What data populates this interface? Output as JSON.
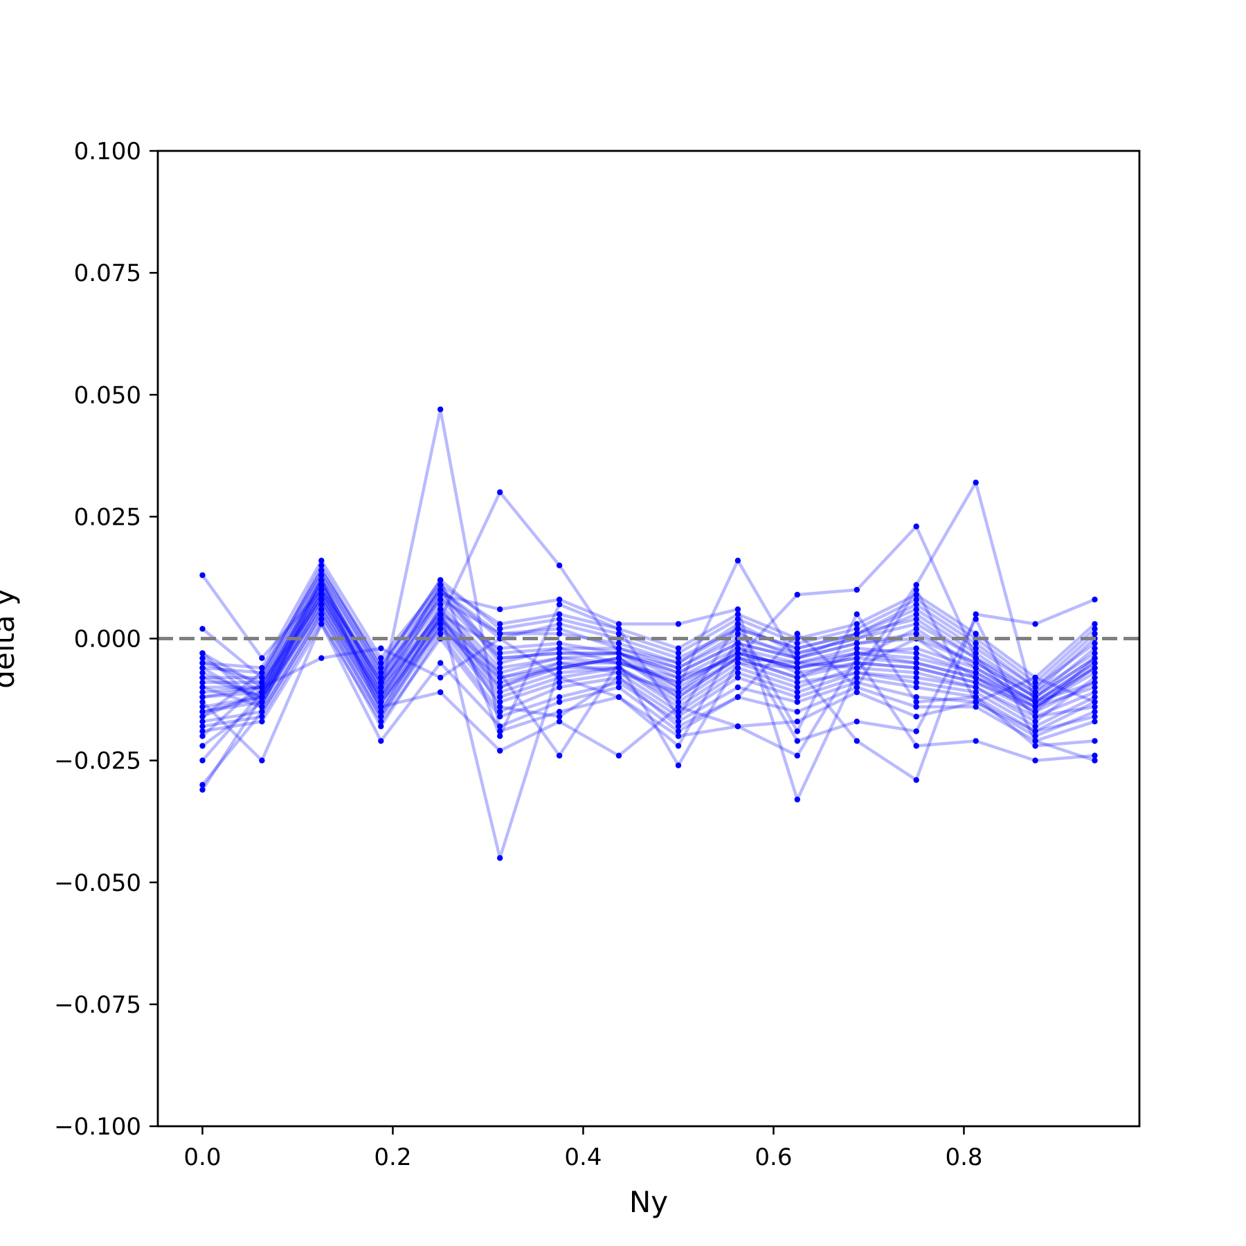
{
  "chart_data": {
    "type": "line",
    "xlabel": "Ny",
    "ylabel": "delta y",
    "xlim": [
      -0.046875,
      0.984375
    ],
    "ylim": [
      -0.1,
      0.1
    ],
    "grid": false,
    "x": [
      0.0,
      0.0625,
      0.125,
      0.1875,
      0.25,
      0.3125,
      0.375,
      0.4375,
      0.5,
      0.5625,
      0.625,
      0.6875,
      0.75,
      0.8125,
      0.875,
      0.9375
    ],
    "x_ticks": [
      0.0,
      0.2,
      0.4,
      0.6,
      0.8
    ],
    "x_tick_labels": [
      "0.0",
      "0.2",
      "0.4",
      "0.6",
      "0.8"
    ],
    "y_ticks": [
      0.1,
      0.075,
      0.05,
      0.025,
      0.0,
      -0.025,
      -0.05,
      -0.075,
      -0.1
    ],
    "y_tick_labels": [
      "0.100",
      "0.075",
      "0.050",
      "0.025",
      "0.000",
      "−0.025",
      "−0.050",
      "−0.075",
      "−0.100"
    ],
    "reference_line": {
      "y": 0.0,
      "style": "dashed",
      "color": "#808080"
    },
    "series_color": "#0000ff",
    "series": [
      {
        "values": [
          0.013,
          -0.004,
          0.01,
          -0.008,
          0.01,
          -0.005,
          -0.002,
          -0.005,
          -0.009,
          -0.003,
          -0.006,
          -0.004,
          0.002,
          -0.006,
          -0.013,
          -0.005
        ]
      },
      {
        "values": [
          -0.031,
          -0.012,
          0.008,
          -0.013,
          0.002,
          -0.008,
          -0.006,
          -0.004,
          -0.012,
          -0.004,
          -0.008,
          -0.003,
          -0.005,
          -0.008,
          -0.015,
          -0.004
        ]
      },
      {
        "values": [
          -0.03,
          -0.015,
          0.005,
          -0.016,
          0.003,
          -0.012,
          -0.008,
          -0.006,
          -0.014,
          -0.006,
          -0.01,
          -0.006,
          -0.007,
          -0.01,
          -0.017,
          -0.008
        ]
      },
      {
        "values": [
          -0.025,
          -0.011,
          0.011,
          -0.009,
          0.005,
          -0.002,
          -0.001,
          -0.003,
          -0.006,
          0.001,
          -0.004,
          0.001,
          0.004,
          -0.004,
          -0.012,
          -0.002
        ]
      },
      {
        "values": [
          -0.022,
          -0.013,
          0.007,
          -0.014,
          0.004,
          -0.01,
          -0.005,
          -0.007,
          -0.011,
          -0.002,
          -0.007,
          -0.005,
          -0.006,
          -0.009,
          -0.014,
          -0.01
        ]
      },
      {
        "values": [
          -0.02,
          -0.009,
          0.013,
          -0.007,
          0.008,
          0.001,
          0.002,
          -0.002,
          -0.005,
          0.003,
          -0.003,
          0.0,
          0.005,
          -0.003,
          -0.011,
          0.0
        ]
      },
      {
        "values": [
          -0.018,
          -0.016,
          0.004,
          -0.018,
          0.001,
          -0.015,
          -0.01,
          -0.008,
          -0.016,
          -0.008,
          -0.012,
          -0.008,
          -0.01,
          -0.012,
          -0.019,
          -0.013
        ]
      },
      {
        "values": [
          -0.016,
          -0.007,
          0.014,
          -0.005,
          0.01,
          0.0,
          0.003,
          0.0,
          -0.004,
          0.002,
          -0.002,
          0.001,
          0.007,
          -0.001,
          -0.01,
          0.001
        ]
      },
      {
        "values": [
          -0.015,
          -0.012,
          0.009,
          -0.011,
          0.006,
          -0.007,
          -0.004,
          -0.005,
          -0.008,
          -0.004,
          -0.005,
          -0.002,
          -0.003,
          -0.007,
          -0.013,
          -0.006
        ]
      },
      {
        "values": [
          -0.012,
          -0.01,
          0.012,
          -0.01,
          0.011,
          -0.004,
          -0.003,
          -0.003,
          -0.007,
          -0.001,
          -0.004,
          -0.001,
          0.0,
          -0.005,
          -0.012,
          -0.004
        ]
      },
      {
        "values": [
          -0.01,
          -0.014,
          0.006,
          -0.015,
          0.003,
          -0.011,
          -0.007,
          -0.006,
          -0.013,
          -0.005,
          -0.009,
          -0.007,
          -0.008,
          -0.01,
          -0.016,
          -0.011
        ]
      },
      {
        "values": [
          -0.008,
          -0.008,
          0.015,
          -0.006,
          0.012,
          0.002,
          0.004,
          0.001,
          -0.003,
          0.004,
          -0.001,
          0.002,
          0.008,
          0.0,
          -0.009,
          0.002
        ]
      },
      {
        "values": [
          -0.006,
          -0.013,
          0.008,
          -0.012,
          0.005,
          -0.009,
          -0.006,
          -0.004,
          -0.01,
          -0.003,
          -0.006,
          -0.004,
          -0.005,
          -0.008,
          -0.014,
          -0.007
        ]
      },
      {
        "values": [
          -0.004,
          -0.011,
          0.01,
          -0.009,
          0.007,
          -0.006,
          -0.004,
          -0.003,
          -0.008,
          -0.002,
          -0.005,
          -0.003,
          -0.002,
          -0.006,
          -0.013,
          -0.005
        ]
      },
      {
        "values": [
          -0.003,
          -0.01,
          0.012,
          -0.008,
          0.009,
          -0.003,
          -0.002,
          -0.002,
          -0.006,
          0.0,
          -0.003,
          0.0,
          0.003,
          -0.004,
          -0.011,
          -0.003
        ]
      },
      {
        "values": [
          0.002,
          -0.008,
          0.013,
          -0.007,
          0.01,
          0.001,
          0.001,
          -0.001,
          -0.005,
          0.002,
          -0.002,
          0.001,
          0.006,
          -0.002,
          -0.01,
          -0.001
        ]
      },
      {
        "values": [
          -0.017,
          -0.015,
          0.005,
          -0.016,
          0.002,
          -0.013,
          -0.009,
          -0.007,
          -0.015,
          -0.007,
          -0.011,
          -0.007,
          -0.009,
          -0.011,
          -0.018,
          -0.012
        ]
      },
      {
        "values": [
          -0.014,
          -0.012,
          0.009,
          -0.012,
          0.006,
          -0.008,
          -0.005,
          -0.005,
          -0.009,
          -0.003,
          -0.006,
          -0.003,
          -0.004,
          -0.007,
          -0.014,
          -0.006
        ]
      },
      {
        "values": [
          -0.009,
          -0.009,
          0.011,
          -0.009,
          0.008,
          -0.004,
          -0.003,
          -0.003,
          -0.007,
          -0.001,
          -0.004,
          -0.001,
          0.001,
          -0.005,
          -0.012,
          -0.004
        ]
      },
      {
        "values": [
          -0.007,
          -0.012,
          0.01,
          -0.013,
          0.004,
          -0.01,
          -0.006,
          -0.006,
          -0.012,
          -0.004,
          -0.008,
          -0.005,
          -0.006,
          -0.009,
          -0.015,
          -0.009
        ]
      },
      {
        "values": [
          -0.019,
          -0.017,
          0.003,
          -0.017,
          0.0,
          -0.016,
          -0.012,
          -0.009,
          -0.017,
          -0.01,
          -0.013,
          -0.009,
          -0.012,
          -0.013,
          -0.02,
          -0.015
        ]
      },
      {
        "values": [
          -0.005,
          -0.006,
          0.016,
          -0.004,
          0.011,
          0.003,
          0.005,
          0.002,
          -0.002,
          0.005,
          0.0,
          0.003,
          0.009,
          0.001,
          -0.008,
          0.003
        ]
      },
      {
        "values": [
          -0.013,
          -0.025,
          0.003,
          -0.021,
          -0.005,
          -0.018,
          -0.013,
          -0.01,
          -0.019,
          -0.012,
          -0.015,
          -0.01,
          -0.014,
          -0.014,
          -0.021,
          -0.017
        ]
      },
      {
        "values": [
          -0.016,
          -0.011,
          0.012,
          -0.011,
          0.047,
          -0.019,
          -0.015,
          -0.012,
          -0.02,
          -0.018,
          -0.017,
          -0.011,
          -0.016,
          -0.013,
          -0.019,
          -0.016
        ]
      },
      {
        "values": [
          -0.01,
          -0.01,
          0.01,
          -0.01,
          0.004,
          0.03,
          0.015,
          -0.003,
          -0.01,
          0.016,
          -0.005,
          -0.006,
          0.0,
          -0.008,
          -0.013,
          -0.009
        ]
      },
      {
        "values": [
          -0.005,
          -0.009,
          0.008,
          -0.012,
          0.006,
          -0.045,
          -0.006,
          -0.004,
          -0.011,
          -0.004,
          0.009,
          0.01,
          0.023,
          -0.004,
          -0.016,
          -0.014
        ]
      },
      {
        "values": [
          -0.012,
          -0.011,
          0.009,
          -0.011,
          0.009,
          0.006,
          0.008,
          0.003,
          0.003,
          0.006,
          -0.033,
          -0.007,
          0.011,
          0.032,
          -0.014,
          -0.006
        ]
      },
      {
        "values": [
          -0.015,
          -0.013,
          0.007,
          -0.013,
          0.004,
          -0.007,
          -0.024,
          -0.005,
          -0.026,
          -0.005,
          -0.006,
          -0.021,
          -0.029,
          0.005,
          0.003,
          0.008
        ]
      },
      {
        "values": [
          -0.008,
          -0.012,
          0.006,
          -0.014,
          -0.011,
          -0.023,
          -0.017,
          -0.024,
          -0.014,
          -0.018,
          -0.024,
          -0.004,
          -0.022,
          -0.021,
          -0.025,
          -0.024
        ]
      },
      {
        "values": [
          -0.011,
          -0.01,
          -0.004,
          -0.002,
          -0.008,
          0.0,
          -0.008,
          -0.012,
          -0.022,
          0.0,
          -0.021,
          -0.017,
          -0.019,
          0.004,
          -0.021,
          -0.025
        ]
      },
      {
        "values": [
          -0.003,
          -0.014,
          0.012,
          -0.015,
          0.005,
          -0.014,
          -0.016,
          -0.008,
          -0.018,
          -0.012,
          0.001,
          -0.01,
          0.01,
          -0.013,
          -0.008,
          -0.013
        ]
      },
      {
        "values": [
          -0.006,
          -0.007,
          0.014,
          -0.006,
          0.012,
          -0.02,
          0.007,
          0.002,
          -0.016,
          0.003,
          -0.019,
          0.005,
          -0.013,
          -0.012,
          -0.022,
          -0.021
        ]
      }
    ]
  }
}
